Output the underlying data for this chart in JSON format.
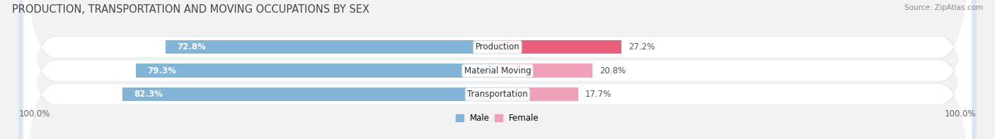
{
  "title": "PRODUCTION, TRANSPORTATION AND MOVING OCCUPATIONS BY SEX",
  "source": "Source: ZipAtlas.com",
  "categories": [
    "Transportation",
    "Material Moving",
    "Production"
  ],
  "male_values": [
    82.3,
    79.3,
    72.8
  ],
  "female_values": [
    17.7,
    20.8,
    27.2
  ],
  "male_color": "#82b4d8",
  "female_colors": [
    "#f0a0b8",
    "#f0a0b8",
    "#e8607a"
  ],
  "row_bg_color": "#e8eef4",
  "row_stripe_color": "#eef2f6",
  "title_fontsize": 10.5,
  "label_fontsize": 8.5,
  "pct_fontsize": 8.5,
  "legend_fontsize": 8.5,
  "background_color": "#f2f2f2",
  "axis_label": "100.0%"
}
